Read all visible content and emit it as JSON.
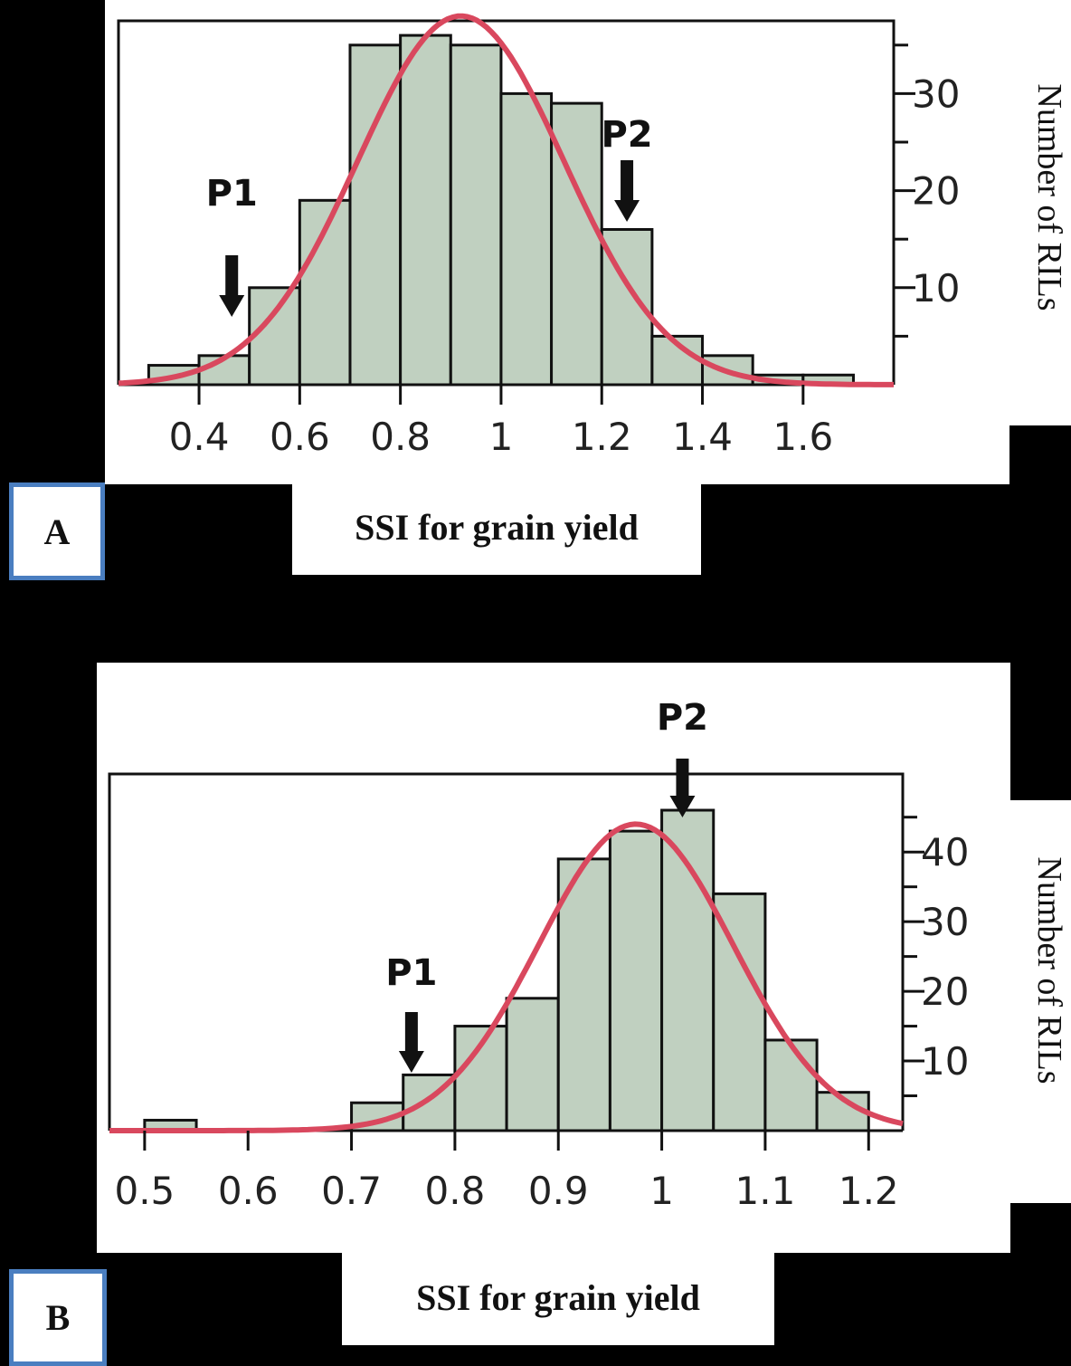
{
  "colors": {
    "bar": "#c0d0c0",
    "bar_edge": "#111111",
    "curve": "#d9485e",
    "label_border": "#4a7ec0"
  },
  "chart_data": [
    {
      "type": "bar",
      "panel": "A",
      "xlabel": "SSI for grain yield",
      "ylabel": "Number of RILs",
      "xlim": [
        0.24,
        1.78
      ],
      "ylim": [
        0,
        37.5
      ],
      "xticks": [
        0.4,
        0.6,
        0.8,
        1,
        1.2,
        1.4,
        1.6
      ],
      "xtick_labels": [
        "0.4",
        "0.6",
        "0.8",
        "1",
        "1.2",
        "1.4",
        "1.6"
      ],
      "yticks": [
        10,
        20,
        30
      ],
      "yminor": [
        5,
        15,
        25,
        35
      ],
      "bin_edges": [
        0.3,
        0.4,
        0.5,
        0.6,
        0.7,
        0.8,
        0.9,
        1.0,
        1.1,
        1.2,
        1.3,
        1.4,
        1.5,
        1.6,
        1.7
      ],
      "counts": [
        2,
        3,
        10,
        19,
        35,
        36,
        35,
        30,
        29,
        16,
        5,
        3,
        1,
        1
      ],
      "curve": {
        "mean": 0.92,
        "sd": 0.205,
        "peak": 38
      },
      "markers": [
        {
          "label": "P1",
          "x": 0.465,
          "placement": "low"
        },
        {
          "label": "P2",
          "x": 1.25,
          "placement": "high"
        }
      ]
    },
    {
      "type": "bar",
      "panel": "B",
      "xlabel": "SSI for grain yield",
      "ylabel": "Number of RILs",
      "xlim": [
        0.466,
        1.233
      ],
      "ylim": [
        0,
        51.2
      ],
      "xticks": [
        0.5,
        0.6,
        0.7,
        0.8,
        0.9,
        1,
        1.1,
        1.2
      ],
      "xtick_labels": [
        "0.5",
        "0.6",
        "0.7",
        "0.8",
        "0.9",
        "1",
        "1.1",
        "1.2"
      ],
      "yticks": [
        10,
        20,
        30,
        40
      ],
      "yminor": [
        5,
        15,
        25,
        35,
        45
      ],
      "bin_edges": [
        0.5,
        0.55,
        0.6,
        0.65,
        0.7,
        0.75,
        0.8,
        0.85,
        0.9,
        0.95,
        1.0,
        1.05,
        1.1,
        1.15,
        1.2
      ],
      "counts": [
        1.5,
        0,
        0,
        0,
        4,
        8,
        15,
        19,
        39,
        43,
        46,
        34,
        13,
        5.5
      ],
      "curve": {
        "mean": 0.975,
        "sd": 0.094,
        "peak": 44
      },
      "markers": [
        {
          "label": "P1",
          "x": 0.758,
          "placement": "low"
        },
        {
          "label": "P2",
          "x": 1.02,
          "placement": "high"
        }
      ]
    }
  ],
  "panels": [
    {
      "label": "A",
      "xlabel": "SSI for grain yield",
      "ylabel": "Number of RILs"
    },
    {
      "label": "B",
      "xlabel": "SSI for grain yield",
      "ylabel": "Number of RILs"
    }
  ]
}
